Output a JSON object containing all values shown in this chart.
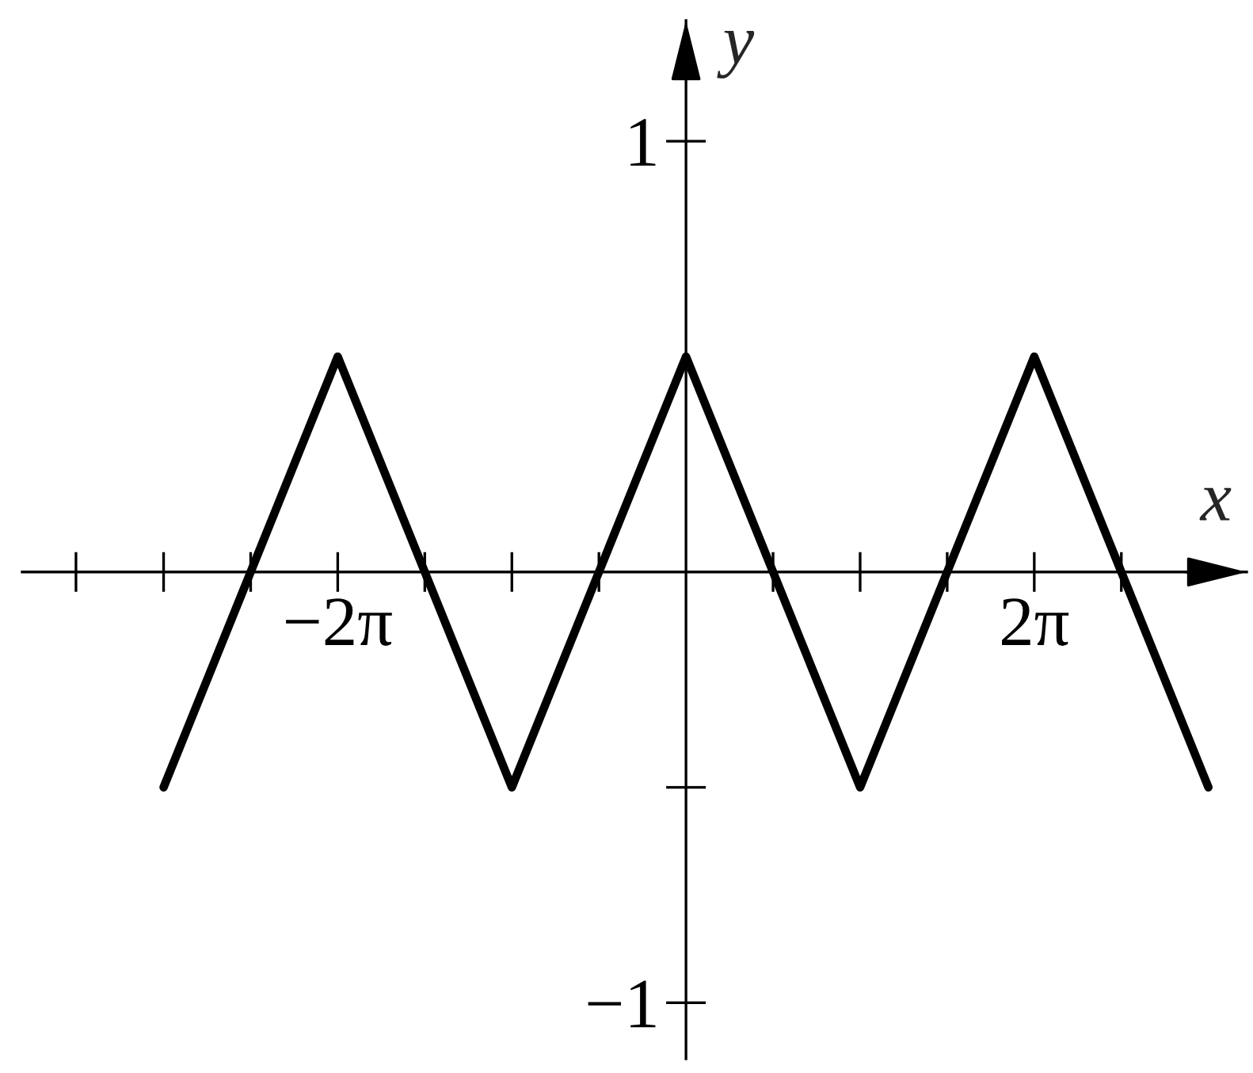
{
  "chart_data": {
    "type": "line",
    "xlabel": "x",
    "ylabel": "y",
    "x": [
      -9.42,
      -6.28,
      -3.14,
      0,
      3.14,
      6.28,
      9.42
    ],
    "series": [
      {
        "color": "#000000",
        "values": [
          -0.5,
          0.5,
          -0.5,
          0.5,
          -0.5,
          0.5,
          -0.5
        ]
      }
    ],
    "xlim": [
      -11.97,
      10.11
    ],
    "ylim": [
      -1.13,
      1.28
    ],
    "xticks": [
      {
        "value": -11.0,
        "label": null
      },
      {
        "value": -9.42,
        "label": null
      },
      {
        "value": -7.85,
        "label": null
      },
      {
        "value": -6.28,
        "label": "−2π"
      },
      {
        "value": -4.71,
        "label": null
      },
      {
        "value": -3.14,
        "label": null
      },
      {
        "value": -1.57,
        "label": null
      },
      {
        "value": 1.57,
        "label": null
      },
      {
        "value": 3.14,
        "label": null
      },
      {
        "value": 4.71,
        "label": null
      },
      {
        "value": 6.28,
        "label": "2π"
      },
      {
        "value": 7.85,
        "label": null
      }
    ],
    "yticks": [
      {
        "value": -1,
        "label": "−1"
      },
      {
        "value": -0.5,
        "label": null
      },
      1
    ],
    "line_style": "solid"
  }
}
